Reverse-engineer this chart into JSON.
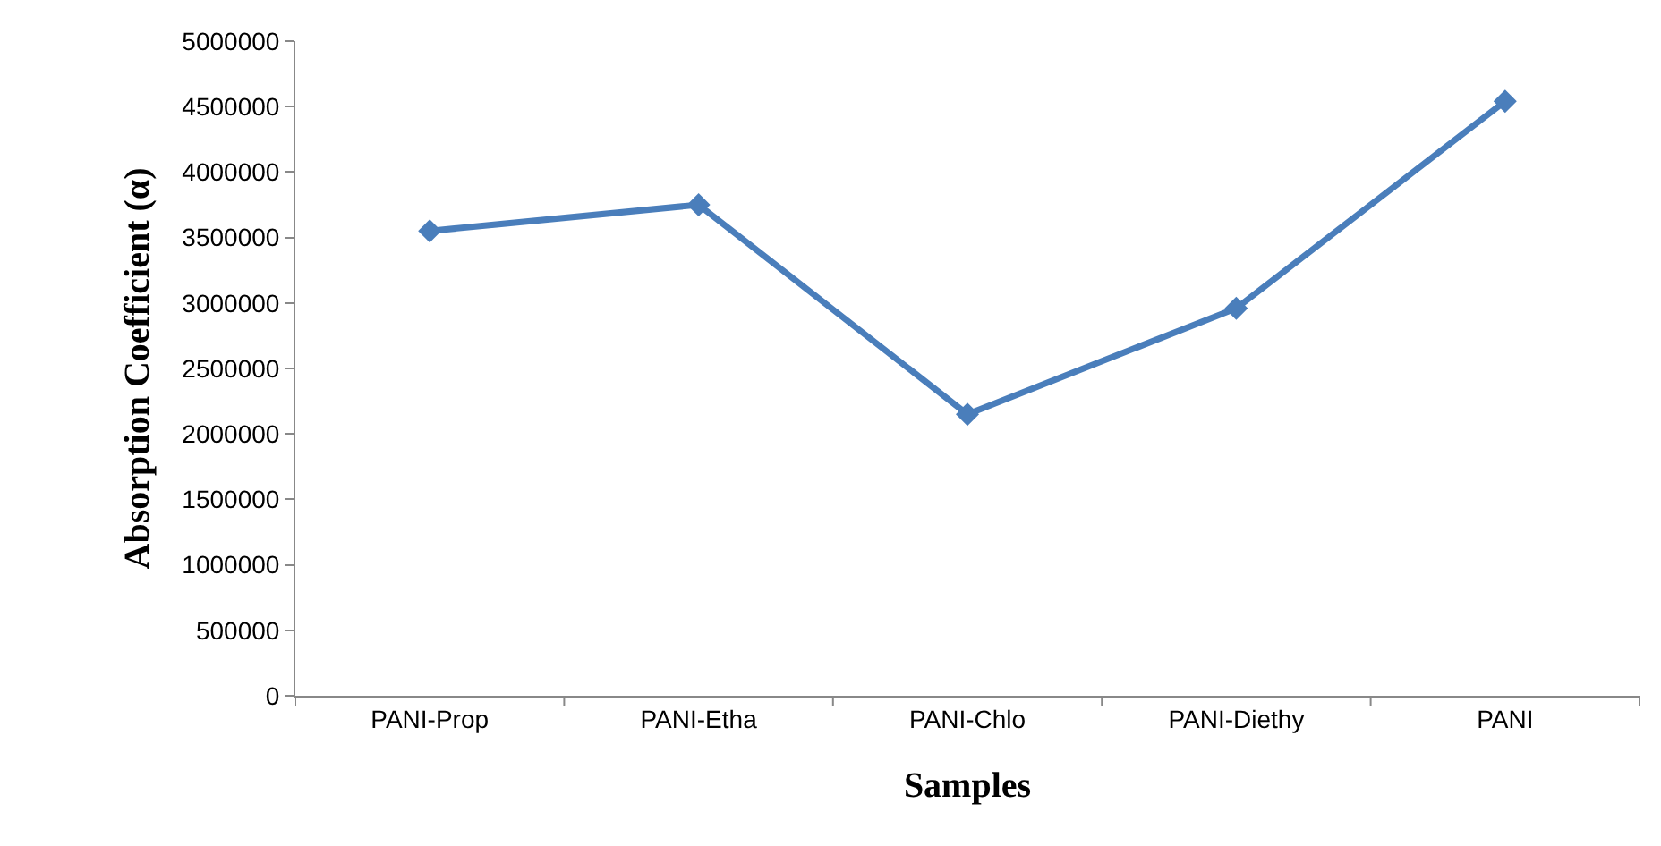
{
  "chart_data": {
    "type": "line",
    "xlabel": "Samples",
    "ylabel": "Absorption Coefficient (α)",
    "categories": [
      "PANI-Prop",
      "PANI-Etha",
      "PANI-Chlo",
      "PANI-Diethy",
      "PANI"
    ],
    "series": [
      {
        "color": "#4a7ebb",
        "values": [
          3550000,
          3750000,
          2150000,
          2960000,
          4540000
        ]
      }
    ],
    "ylim": [
      0,
      5000000
    ],
    "yticks": [
      0,
      500000,
      1000000,
      1500000,
      2000000,
      2500000,
      3000000,
      3500000,
      4000000,
      4500000,
      5000000
    ],
    "grid": false,
    "marker": "diamond",
    "line_style": "solid"
  }
}
